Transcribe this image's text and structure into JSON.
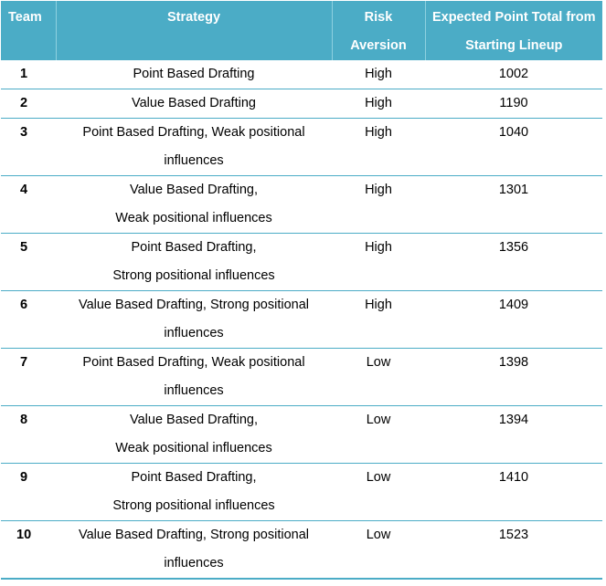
{
  "table": {
    "headers": {
      "team": "Team",
      "strategy": "Strategy",
      "risk_line1": "Risk",
      "risk_line2": "Aversion",
      "points_line1": "Expected Point Total from",
      "points_line2": "Starting Lineup"
    },
    "header_color": "#4bacc6",
    "rows": [
      {
        "team": "1",
        "strategy": [
          "Point Based Drafting"
        ],
        "risk": "High",
        "points": "1002"
      },
      {
        "team": "2",
        "strategy": [
          "Value Based Drafting"
        ],
        "risk": "High",
        "points": "1190"
      },
      {
        "team": "3",
        "strategy": [
          "Point Based Drafting, Weak positional",
          "influences"
        ],
        "risk": "High",
        "points": "1040"
      },
      {
        "team": "4",
        "strategy": [
          "Value Based Drafting,",
          "Weak positional influences"
        ],
        "risk": "High",
        "points": "1301"
      },
      {
        "team": "5",
        "strategy": [
          "Point Based Drafting,",
          "Strong positional influences"
        ],
        "risk": "High",
        "points": "1356"
      },
      {
        "team": "6",
        "strategy": [
          "Value Based Drafting, Strong positional",
          "influences"
        ],
        "risk": "High",
        "points": "1409"
      },
      {
        "team": "7",
        "strategy": [
          "Point Based Drafting, Weak positional",
          "influences"
        ],
        "risk": "Low",
        "points": "1398"
      },
      {
        "team": "8",
        "strategy": [
          "Value Based Drafting,",
          "Weak positional influences"
        ],
        "risk": "Low",
        "points": "1394"
      },
      {
        "team": "9",
        "strategy": [
          "Point Based Drafting,",
          "Strong positional influences"
        ],
        "risk": "Low",
        "points": "1410"
      },
      {
        "team": "10",
        "strategy": [
          "Value Based Drafting, Strong positional",
          "influences"
        ],
        "risk": "Low",
        "points": "1523"
      }
    ]
  }
}
